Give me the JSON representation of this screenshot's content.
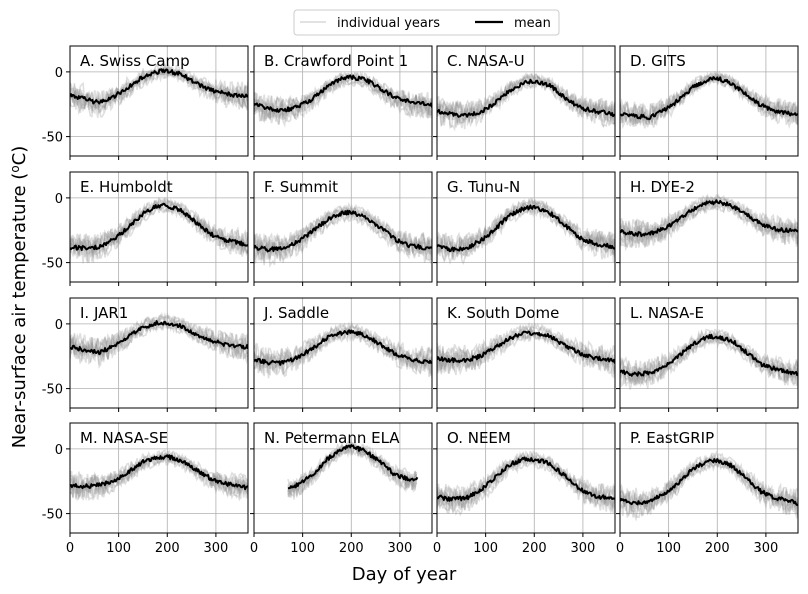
{
  "chart_data": {
    "type": "line",
    "xlabel": "Day of year",
    "ylabel": "Near-surface air temperature (",
    "ylabel_sup": "o",
    "ylabel_tail": "C)",
    "xlim": [
      0,
      366
    ],
    "ylim": [
      -65,
      20
    ],
    "xticks": [
      0,
      100,
      200,
      300
    ],
    "yticks": [
      0,
      -50
    ],
    "grid": true,
    "legend": {
      "placement": "top-center",
      "entries": [
        {
          "label": "individual years",
          "color": "#d9d9d9"
        },
        {
          "label": "mean",
          "color": "#000000"
        }
      ]
    },
    "colors": {
      "individual_years": "#8c8c8c",
      "mean": "#000000"
    },
    "panels": [
      {
        "title": "A. Swiss Camp",
        "mean": {
          "x": [
            0,
            30,
            60,
            90,
            120,
            150,
            180,
            200,
            230,
            260,
            290,
            320,
            366
          ],
          "y": [
            -18,
            -21,
            -24,
            -19,
            -12,
            -4,
            0,
            1,
            -2,
            -9,
            -14,
            -17,
            -19
          ]
        }
      },
      {
        "title": "B. Crawford Point 1",
        "mean": {
          "x": [
            0,
            30,
            60,
            90,
            120,
            150,
            180,
            200,
            230,
            260,
            290,
            320,
            366
          ],
          "y": [
            -25,
            -28,
            -30,
            -27,
            -21,
            -12,
            -5,
            -4,
            -6,
            -13,
            -20,
            -23,
            -26
          ]
        }
      },
      {
        "title": "C. NASA-U",
        "mean": {
          "x": [
            0,
            30,
            60,
            90,
            120,
            150,
            180,
            200,
            230,
            260,
            290,
            320,
            366
          ],
          "y": [
            -30,
            -33,
            -34,
            -31,
            -24,
            -14,
            -8,
            -7,
            -10,
            -19,
            -27,
            -30,
            -33
          ]
        }
      },
      {
        "title": "D. GITS",
        "mean": {
          "x": [
            0,
            30,
            60,
            90,
            120,
            150,
            180,
            200,
            230,
            260,
            290,
            320,
            366
          ],
          "y": [
            -32,
            -34,
            -35,
            -30,
            -22,
            -12,
            -6,
            -5,
            -9,
            -18,
            -26,
            -30,
            -34
          ]
        }
      },
      {
        "title": "E. Humboldt",
        "mean": {
          "x": [
            0,
            30,
            60,
            90,
            120,
            150,
            180,
            200,
            230,
            260,
            290,
            320,
            366
          ],
          "y": [
            -38,
            -39,
            -38,
            -32,
            -23,
            -12,
            -6,
            -6,
            -10,
            -19,
            -28,
            -33,
            -36
          ]
        }
      },
      {
        "title": "F. Summit",
        "mean": {
          "x": [
            0,
            30,
            60,
            90,
            120,
            150,
            180,
            200,
            230,
            260,
            290,
            320,
            366
          ],
          "y": [
            -38,
            -40,
            -39,
            -34,
            -26,
            -17,
            -12,
            -11,
            -15,
            -23,
            -32,
            -37,
            -39
          ]
        }
      },
      {
        "title": "G. Tunu-N",
        "mean": {
          "x": [
            0,
            30,
            60,
            90,
            120,
            150,
            180,
            200,
            230,
            260,
            290,
            320,
            366
          ],
          "y": [
            -37,
            -40,
            -39,
            -33,
            -24,
            -13,
            -8,
            -7,
            -11,
            -20,
            -30,
            -35,
            -38
          ]
        }
      },
      {
        "title": "H. DYE-2",
        "mean": {
          "x": [
            0,
            30,
            60,
            90,
            120,
            150,
            180,
            200,
            230,
            260,
            290,
            320,
            366
          ],
          "y": [
            -26,
            -28,
            -28,
            -24,
            -17,
            -9,
            -4,
            -3,
            -6,
            -13,
            -20,
            -24,
            -26
          ]
        }
      },
      {
        "title": "I. JAR1",
        "mean": {
          "x": [
            0,
            30,
            60,
            90,
            120,
            150,
            180,
            200,
            230,
            260,
            290,
            320,
            366
          ],
          "y": [
            -18,
            -20,
            -22,
            -17,
            -10,
            -3,
            1,
            1,
            -2,
            -8,
            -13,
            -16,
            -18
          ]
        }
      },
      {
        "title": "J. Saddle",
        "mean": {
          "x": [
            0,
            30,
            60,
            90,
            120,
            150,
            180,
            200,
            230,
            260,
            290,
            320,
            366
          ],
          "y": [
            -27,
            -30,
            -30,
            -26,
            -19,
            -11,
            -7,
            -6,
            -9,
            -16,
            -23,
            -27,
            -30
          ]
        }
      },
      {
        "title": "K. South Dome",
        "mean": {
          "x": [
            0,
            30,
            60,
            90,
            120,
            150,
            180,
            200,
            230,
            260,
            290,
            320,
            366
          ],
          "y": [
            -27,
            -28,
            -28,
            -25,
            -18,
            -11,
            -7,
            -7,
            -9,
            -16,
            -22,
            -26,
            -29
          ]
        }
      },
      {
        "title": "L. NASA-E",
        "mean": {
          "x": [
            0,
            30,
            60,
            90,
            120,
            150,
            180,
            200,
            230,
            260,
            290,
            320,
            366
          ],
          "y": [
            -37,
            -39,
            -38,
            -33,
            -25,
            -16,
            -10,
            -10,
            -13,
            -22,
            -31,
            -35,
            -39
          ]
        }
      },
      {
        "title": "M. NASA-SE",
        "mean": {
          "x": [
            0,
            30,
            60,
            90,
            120,
            150,
            180,
            200,
            230,
            260,
            290,
            320,
            366
          ],
          "y": [
            -28,
            -29,
            -28,
            -25,
            -18,
            -10,
            -7,
            -6,
            -9,
            -16,
            -23,
            -27,
            -30
          ]
        }
      },
      {
        "title": "N. Petermann ELA",
        "mean": {
          "x": [
            70,
            90,
            120,
            150,
            180,
            200,
            230,
            260,
            290,
            320,
            336
          ],
          "y": [
            -30,
            -28,
            -20,
            -8,
            0,
            2,
            -2,
            -10,
            -20,
            -24,
            -23
          ]
        }
      },
      {
        "title": "O. NEEM",
        "mean": {
          "x": [
            0,
            30,
            60,
            90,
            120,
            150,
            180,
            200,
            230,
            260,
            290,
            320,
            366
          ],
          "y": [
            -37,
            -39,
            -38,
            -32,
            -22,
            -12,
            -8,
            -8,
            -11,
            -20,
            -30,
            -36,
            -39
          ]
        }
      },
      {
        "title": "P. EastGRIP",
        "mean": {
          "x": [
            0,
            30,
            60,
            90,
            120,
            150,
            180,
            200,
            230,
            260,
            290,
            320,
            366
          ],
          "y": [
            -40,
            -42,
            -41,
            -35,
            -26,
            -15,
            -10,
            -9,
            -13,
            -23,
            -33,
            -38,
            -42
          ]
        }
      }
    ]
  }
}
